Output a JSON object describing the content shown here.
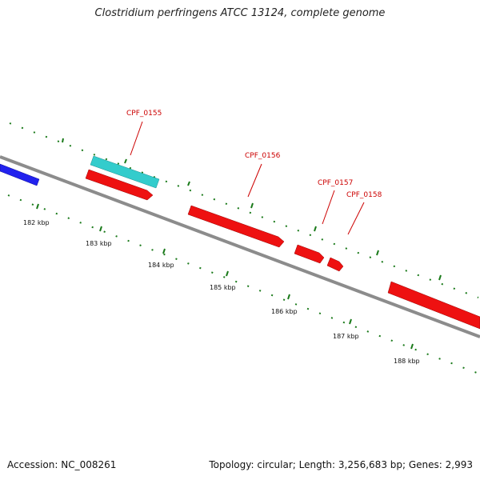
{
  "title": "Clostridium perfringens ATCC 13124, complete genome",
  "footer": {
    "accession": "Accession: NC_008261",
    "summary": "Topology: circular; Length: 3,256,683 bp; Genes: 2,993"
  },
  "colors": {
    "backbone": "#8c8c8c",
    "tick": "#1a7a1a",
    "forward_gene": "#2222ee",
    "reverse_gene": "#ee1111",
    "rna_gene": "#33cccc",
    "gene_label": "#cc0000"
  },
  "ticks": {
    "unit": "kbp",
    "labels": [
      "182 kbp",
      "183 kbp",
      "184 kbp",
      "185 kbp",
      "186 kbp",
      "187 kbp",
      "188 kbp"
    ]
  },
  "genes": [
    {
      "id": "blue-left",
      "strand": "forward",
      "type": "cds",
      "label": ""
    },
    {
      "id": "CPF_0155-rna",
      "strand": "forward",
      "type": "rna",
      "label": ""
    },
    {
      "id": "CPF_0155",
      "strand": "reverse",
      "type": "cds",
      "label": "CPF_0155"
    },
    {
      "id": "CPF_0156",
      "strand": "reverse",
      "type": "cds",
      "label": "CPF_0156"
    },
    {
      "id": "CPF_0157",
      "strand": "reverse",
      "type": "cds",
      "label": "CPF_0157"
    },
    {
      "id": "CPF_0158",
      "strand": "reverse",
      "type": "cds",
      "label": "CPF_0158"
    },
    {
      "id": "right",
      "strand": "reverse",
      "type": "cds",
      "label": ""
    }
  ]
}
